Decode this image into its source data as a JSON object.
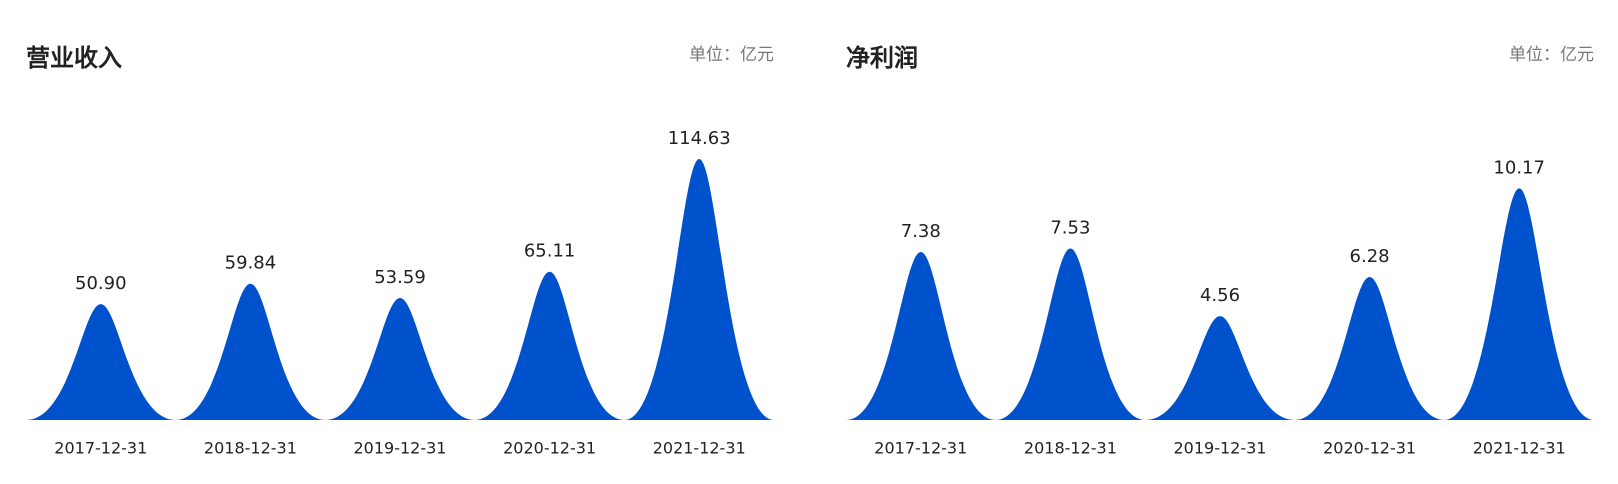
{
  "chart_data": [
    {
      "type": "spike",
      "title": "营业收入",
      "unit": "单位：亿元",
      "categories": [
        "2017-12-31",
        "2018-12-31",
        "2019-12-31",
        "2020-12-31",
        "2021-12-31"
      ],
      "values": [
        50.9,
        59.84,
        53.59,
        65.11,
        114.63
      ],
      "value_labels": [
        "50.90",
        "59.84",
        "53.59",
        "65.11",
        "114.63"
      ],
      "color": "#0052cc",
      "ylim": [
        0,
        130
      ]
    },
    {
      "type": "spike",
      "title": "净利润",
      "unit": "单位：亿元",
      "categories": [
        "2017-12-31",
        "2018-12-31",
        "2019-12-31",
        "2020-12-31",
        "2021-12-31"
      ],
      "values": [
        7.38,
        7.53,
        4.56,
        6.28,
        10.17
      ],
      "value_labels": [
        "7.38",
        "7.53",
        "4.56",
        "6.28",
        "10.17"
      ],
      "color": "#0052cc",
      "ylim": [
        0,
        13
      ]
    }
  ]
}
